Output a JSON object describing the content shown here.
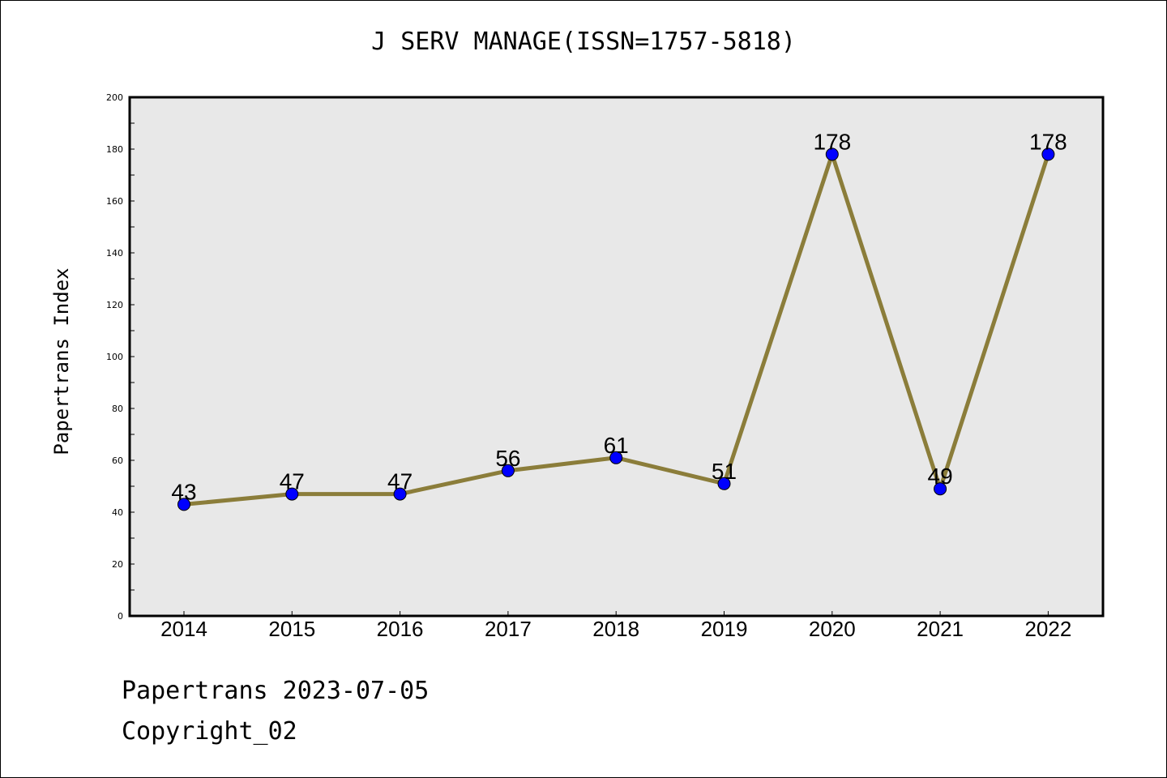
{
  "chart_data": {
    "type": "line",
    "title": "J SERV MANAGE(ISSN=1757-5818)",
    "xlabel": "",
    "ylabel": "Papertrans Index",
    "categories": [
      "2014",
      "2015",
      "2016",
      "2017",
      "2018",
      "2019",
      "2020",
      "2021",
      "2022"
    ],
    "series": [
      {
        "values": [
          43,
          47,
          47,
          56,
          61,
          51,
          178,
          49,
          178
        ]
      }
    ],
    "data_labels": [
      "43",
      "47",
      "47",
      "56",
      "61",
      "51",
      "178",
      "49",
      "178"
    ],
    "ylim": [
      0,
      200
    ],
    "yticks": [
      0,
      20,
      40,
      60,
      80,
      100,
      120,
      140,
      160,
      180,
      200
    ],
    "grid": false,
    "colors": {
      "line": "#8B7D3A",
      "marker": "#0000FF",
      "plot_background": "#E8E8E8"
    }
  },
  "footer": {
    "line1": "Papertrans 2023-07-05",
    "line2": "Copyright_02"
  }
}
